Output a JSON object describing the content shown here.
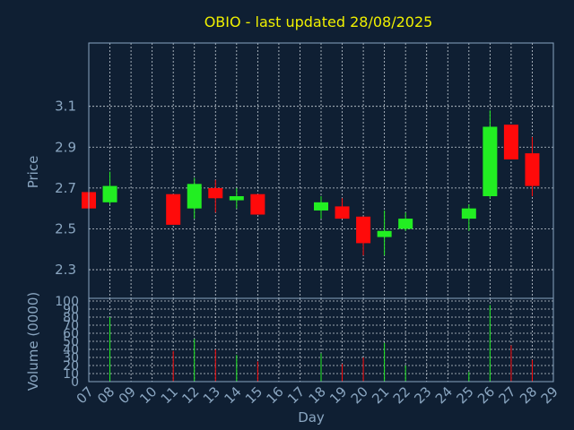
{
  "chart_data": {
    "type": "candlestick",
    "title": "OBIO - last updated 28/08/2025",
    "ylabel": "Price",
    "xlabel": "Day",
    "volume_label": "Volume (0000)",
    "price_ticks": [
      "2.3",
      "2.5",
      "2.7",
      "2.9",
      "3.1"
    ],
    "price_tick_values": [
      2.3,
      2.5,
      2.7,
      2.9,
      3.1
    ],
    "volume_ticks": [
      "0",
      "10",
      "20",
      "30",
      "40",
      "50",
      "60",
      "70",
      "80",
      "90",
      "100"
    ],
    "volume_tick_values": [
      0,
      10,
      20,
      30,
      40,
      50,
      60,
      70,
      80,
      90,
      100
    ],
    "x_ticks": [
      "07",
      "08",
      "09",
      "10",
      "11",
      "12",
      "13",
      "14",
      "15",
      "16",
      "17",
      "18",
      "19",
      "20",
      "21",
      "22",
      "23",
      "24",
      "25",
      "26",
      "27",
      "28",
      "29"
    ],
    "ylim": [
      2.16,
      3.41
    ],
    "vol_lim": [
      0,
      100
    ],
    "candles": [
      {
        "day": "07",
        "open": 2.68,
        "close": 2.6,
        "high": 2.69,
        "low": 2.6,
        "volume": 0
      },
      {
        "day": "08",
        "open": 2.63,
        "close": 2.71,
        "high": 2.78,
        "low": 2.62,
        "volume": 80
      },
      {
        "day": "11",
        "open": 2.67,
        "close": 2.52,
        "high": 2.67,
        "low": 2.52,
        "volume": 38
      },
      {
        "day": "12",
        "open": 2.6,
        "close": 2.72,
        "high": 2.75,
        "low": 2.55,
        "volume": 53
      },
      {
        "day": "13",
        "open": 2.7,
        "close": 2.65,
        "high": 2.74,
        "low": 2.58,
        "volume": 40
      },
      {
        "day": "14",
        "open": 2.64,
        "close": 2.66,
        "high": 2.7,
        "low": 2.6,
        "volume": 33
      },
      {
        "day": "15",
        "open": 2.67,
        "close": 2.57,
        "high": 2.67,
        "low": 2.57,
        "volume": 25
      },
      {
        "day": "18",
        "open": 2.59,
        "close": 2.63,
        "high": 2.66,
        "low": 2.55,
        "volume": 35
      },
      {
        "day": "19",
        "open": 2.61,
        "close": 2.55,
        "high": 2.65,
        "low": 2.55,
        "volume": 22
      },
      {
        "day": "20",
        "open": 2.56,
        "close": 2.43,
        "high": 2.56,
        "low": 2.37,
        "volume": 30
      },
      {
        "day": "21",
        "open": 2.46,
        "close": 2.49,
        "high": 2.59,
        "low": 2.37,
        "volume": 48
      },
      {
        "day": "22",
        "open": 2.5,
        "close": 2.55,
        "high": 2.58,
        "low": 2.49,
        "volume": 20
      },
      {
        "day": "25",
        "open": 2.55,
        "close": 2.6,
        "high": 2.62,
        "low": 2.49,
        "volume": 12
      },
      {
        "day": "26",
        "open": 2.66,
        "close": 3.0,
        "high": 3.08,
        "low": 2.65,
        "volume": 95
      },
      {
        "day": "27",
        "open": 3.01,
        "close": 2.84,
        "high": 3.01,
        "low": 2.84,
        "volume": 45
      },
      {
        "day": "28",
        "open": 2.87,
        "close": 2.71,
        "high": 2.95,
        "low": 2.66,
        "volume": 27
      }
    ],
    "up_color": "#22ee22",
    "down_color": "#ff0a0a",
    "grid": true
  }
}
